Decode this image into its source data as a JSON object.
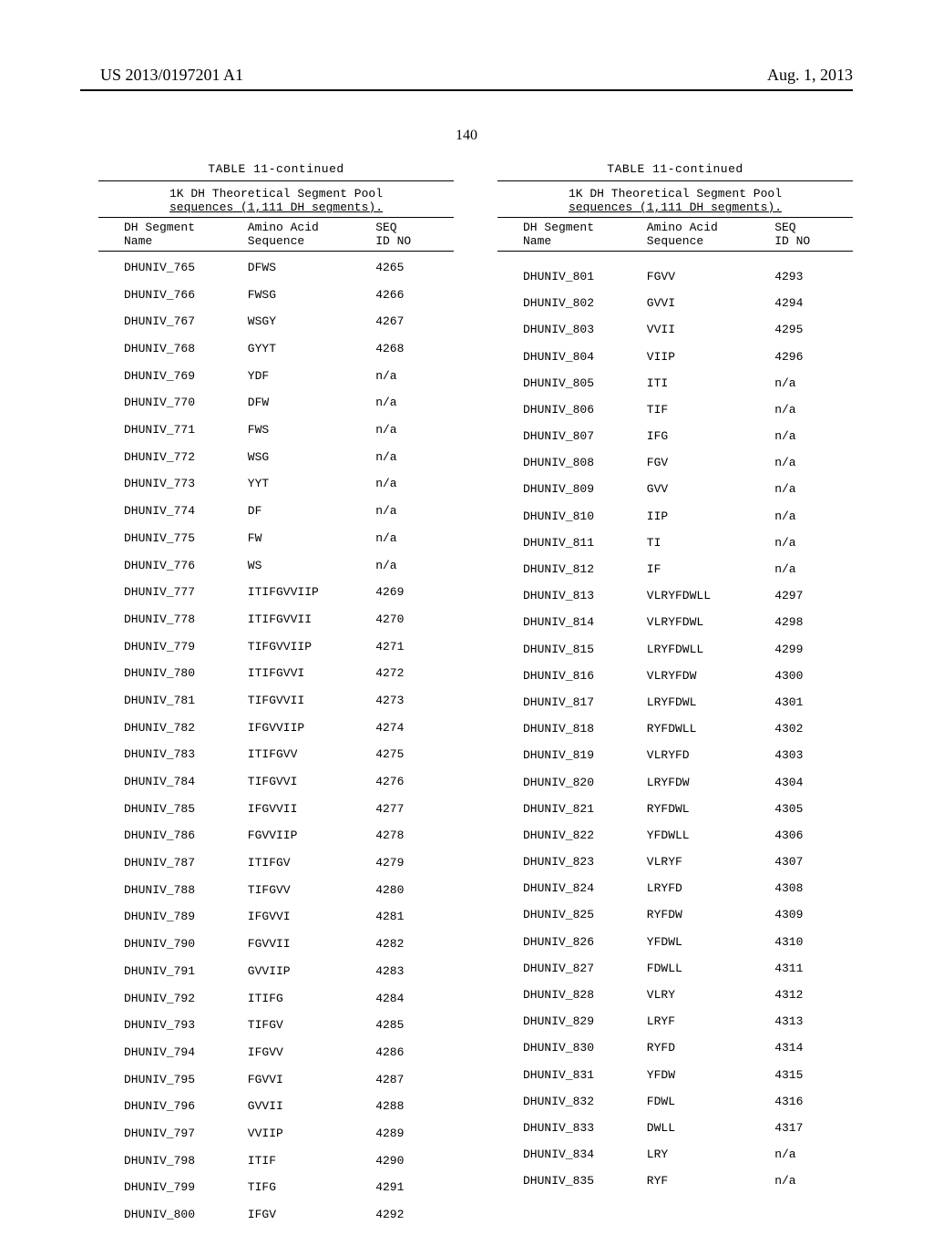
{
  "header": {
    "pub_number": "US 2013/0197201 A1",
    "date": "Aug. 1, 2013",
    "page": "140"
  },
  "table": {
    "title": "TABLE 11-continued",
    "subtitle_line1": "1K DH Theoretical Segment Pool",
    "subtitle_line2": "sequences (1,111 DH segments).",
    "col_headers": {
      "name_l1": "DH Segment",
      "name_l2": "Name",
      "seq_l1": "Amino Acid",
      "seq_l2": "Sequence",
      "id_l1": "SEQ",
      "id_l2": "ID NO"
    }
  },
  "left_rows": [
    {
      "name": "DHUNIV_765",
      "seq": "DFWS",
      "id": "4265"
    },
    {
      "name": "DHUNIV_766",
      "seq": "FWSG",
      "id": "4266"
    },
    {
      "name": "DHUNIV_767",
      "seq": "WSGY",
      "id": "4267"
    },
    {
      "name": "DHUNIV_768",
      "seq": "GYYT",
      "id": "4268"
    },
    {
      "name": "DHUNIV_769",
      "seq": "YDF",
      "id": "n/a"
    },
    {
      "name": "DHUNIV_770",
      "seq": "DFW",
      "id": "n/a"
    },
    {
      "name": "DHUNIV_771",
      "seq": "FWS",
      "id": "n/a"
    },
    {
      "name": "DHUNIV_772",
      "seq": "WSG",
      "id": "n/a"
    },
    {
      "name": "DHUNIV_773",
      "seq": "YYT",
      "id": "n/a"
    },
    {
      "name": "DHUNIV_774",
      "seq": "DF",
      "id": "n/a"
    },
    {
      "name": "DHUNIV_775",
      "seq": "FW",
      "id": "n/a"
    },
    {
      "name": "DHUNIV_776",
      "seq": "WS",
      "id": "n/a"
    },
    {
      "name": "DHUNIV_777",
      "seq": "ITIFGVVIIP",
      "id": "4269"
    },
    {
      "name": "DHUNIV_778",
      "seq": "ITIFGVVII",
      "id": "4270"
    },
    {
      "name": "DHUNIV_779",
      "seq": "TIFGVVIIP",
      "id": "4271"
    },
    {
      "name": "DHUNIV_780",
      "seq": "ITIFGVVI",
      "id": "4272"
    },
    {
      "name": "DHUNIV_781",
      "seq": "TIFGVVII",
      "id": "4273"
    },
    {
      "name": "DHUNIV_782",
      "seq": "IFGVVIIP",
      "id": "4274"
    },
    {
      "name": "DHUNIV_783",
      "seq": "ITIFGVV",
      "id": "4275"
    },
    {
      "name": "DHUNIV_784",
      "seq": "TIFGVVI",
      "id": "4276"
    },
    {
      "name": "DHUNIV_785",
      "seq": "IFGVVII",
      "id": "4277"
    },
    {
      "name": "DHUNIV_786",
      "seq": "FGVVIIP",
      "id": "4278"
    },
    {
      "name": "DHUNIV_787",
      "seq": "ITIFGV",
      "id": "4279"
    },
    {
      "name": "DHUNIV_788",
      "seq": "TIFGVV",
      "id": "4280"
    },
    {
      "name": "DHUNIV_789",
      "seq": "IFGVVI",
      "id": "4281"
    },
    {
      "name": "DHUNIV_790",
      "seq": "FGVVII",
      "id": "4282"
    },
    {
      "name": "DHUNIV_791",
      "seq": "GVVIIP",
      "id": "4283"
    },
    {
      "name": "DHUNIV_792",
      "seq": "ITIFG",
      "id": "4284"
    },
    {
      "name": "DHUNIV_793",
      "seq": "TIFGV",
      "id": "4285"
    },
    {
      "name": "DHUNIV_794",
      "seq": "IFGVV",
      "id": "4286"
    },
    {
      "name": "DHUNIV_795",
      "seq": "FGVVI",
      "id": "4287"
    },
    {
      "name": "DHUNIV_796",
      "seq": "GVVII",
      "id": "4288"
    },
    {
      "name": "DHUNIV_797",
      "seq": "VVIIP",
      "id": "4289"
    },
    {
      "name": "DHUNIV_798",
      "seq": "ITIF",
      "id": "4290"
    },
    {
      "name": "DHUNIV_799",
      "seq": "TIFG",
      "id": "4291"
    },
    {
      "name": "DHUNIV_800",
      "seq": "IFGV",
      "id": "4292"
    }
  ],
  "right_rows": [
    {
      "name": "DHUNIV_801",
      "seq": "FGVV",
      "id": "4293"
    },
    {
      "name": "DHUNIV_802",
      "seq": "GVVI",
      "id": "4294"
    },
    {
      "name": "DHUNIV_803",
      "seq": "VVII",
      "id": "4295"
    },
    {
      "name": "DHUNIV_804",
      "seq": "VIIP",
      "id": "4296"
    },
    {
      "name": "DHUNIV_805",
      "seq": "ITI",
      "id": "n/a"
    },
    {
      "name": "DHUNIV_806",
      "seq": "TIF",
      "id": "n/a"
    },
    {
      "name": "DHUNIV_807",
      "seq": "IFG",
      "id": "n/a"
    },
    {
      "name": "DHUNIV_808",
      "seq": "FGV",
      "id": "n/a"
    },
    {
      "name": "DHUNIV_809",
      "seq": "GVV",
      "id": "n/a"
    },
    {
      "name": "DHUNIV_810",
      "seq": "IIP",
      "id": "n/a"
    },
    {
      "name": "DHUNIV_811",
      "seq": "TI",
      "id": "n/a"
    },
    {
      "name": "DHUNIV_812",
      "seq": "IF",
      "id": "n/a"
    },
    {
      "name": "DHUNIV_813",
      "seq": "VLRYFDWLL",
      "id": "4297"
    },
    {
      "name": "DHUNIV_814",
      "seq": "VLRYFDWL",
      "id": "4298"
    },
    {
      "name": "DHUNIV_815",
      "seq": "LRYFDWLL",
      "id": "4299"
    },
    {
      "name": "DHUNIV_816",
      "seq": "VLRYFDW",
      "id": "4300"
    },
    {
      "name": "DHUNIV_817",
      "seq": "LRYFDWL",
      "id": "4301"
    },
    {
      "name": "DHUNIV_818",
      "seq": "RYFDWLL",
      "id": "4302"
    },
    {
      "name": "DHUNIV_819",
      "seq": "VLRYFD",
      "id": "4303"
    },
    {
      "name": "DHUNIV_820",
      "seq": "LRYFDW",
      "id": "4304"
    },
    {
      "name": "DHUNIV_821",
      "seq": "RYFDWL",
      "id": "4305"
    },
    {
      "name": "DHUNIV_822",
      "seq": "YFDWLL",
      "id": "4306"
    },
    {
      "name": "DHUNIV_823",
      "seq": "VLRYF",
      "id": "4307"
    },
    {
      "name": "DHUNIV_824",
      "seq": "LRYFD",
      "id": "4308"
    },
    {
      "name": "DHUNIV_825",
      "seq": "RYFDW",
      "id": "4309"
    },
    {
      "name": "DHUNIV_826",
      "seq": "YFDWL",
      "id": "4310"
    },
    {
      "name": "DHUNIV_827",
      "seq": "FDWLL",
      "id": "4311"
    },
    {
      "name": "DHUNIV_828",
      "seq": "VLRY",
      "id": "4312"
    },
    {
      "name": "DHUNIV_829",
      "seq": "LRYF",
      "id": "4313"
    },
    {
      "name": "DHUNIV_830",
      "seq": "RYFD",
      "id": "4314"
    },
    {
      "name": "DHUNIV_831",
      "seq": "YFDW",
      "id": "4315"
    },
    {
      "name": "DHUNIV_832",
      "seq": "FDWL",
      "id": "4316"
    },
    {
      "name": "DHUNIV_833",
      "seq": "DWLL",
      "id": "4317"
    },
    {
      "name": "DHUNIV_834",
      "seq": "LRY",
      "id": "n/a"
    },
    {
      "name": "DHUNIV_835",
      "seq": "RYF",
      "id": "n/a"
    }
  ]
}
